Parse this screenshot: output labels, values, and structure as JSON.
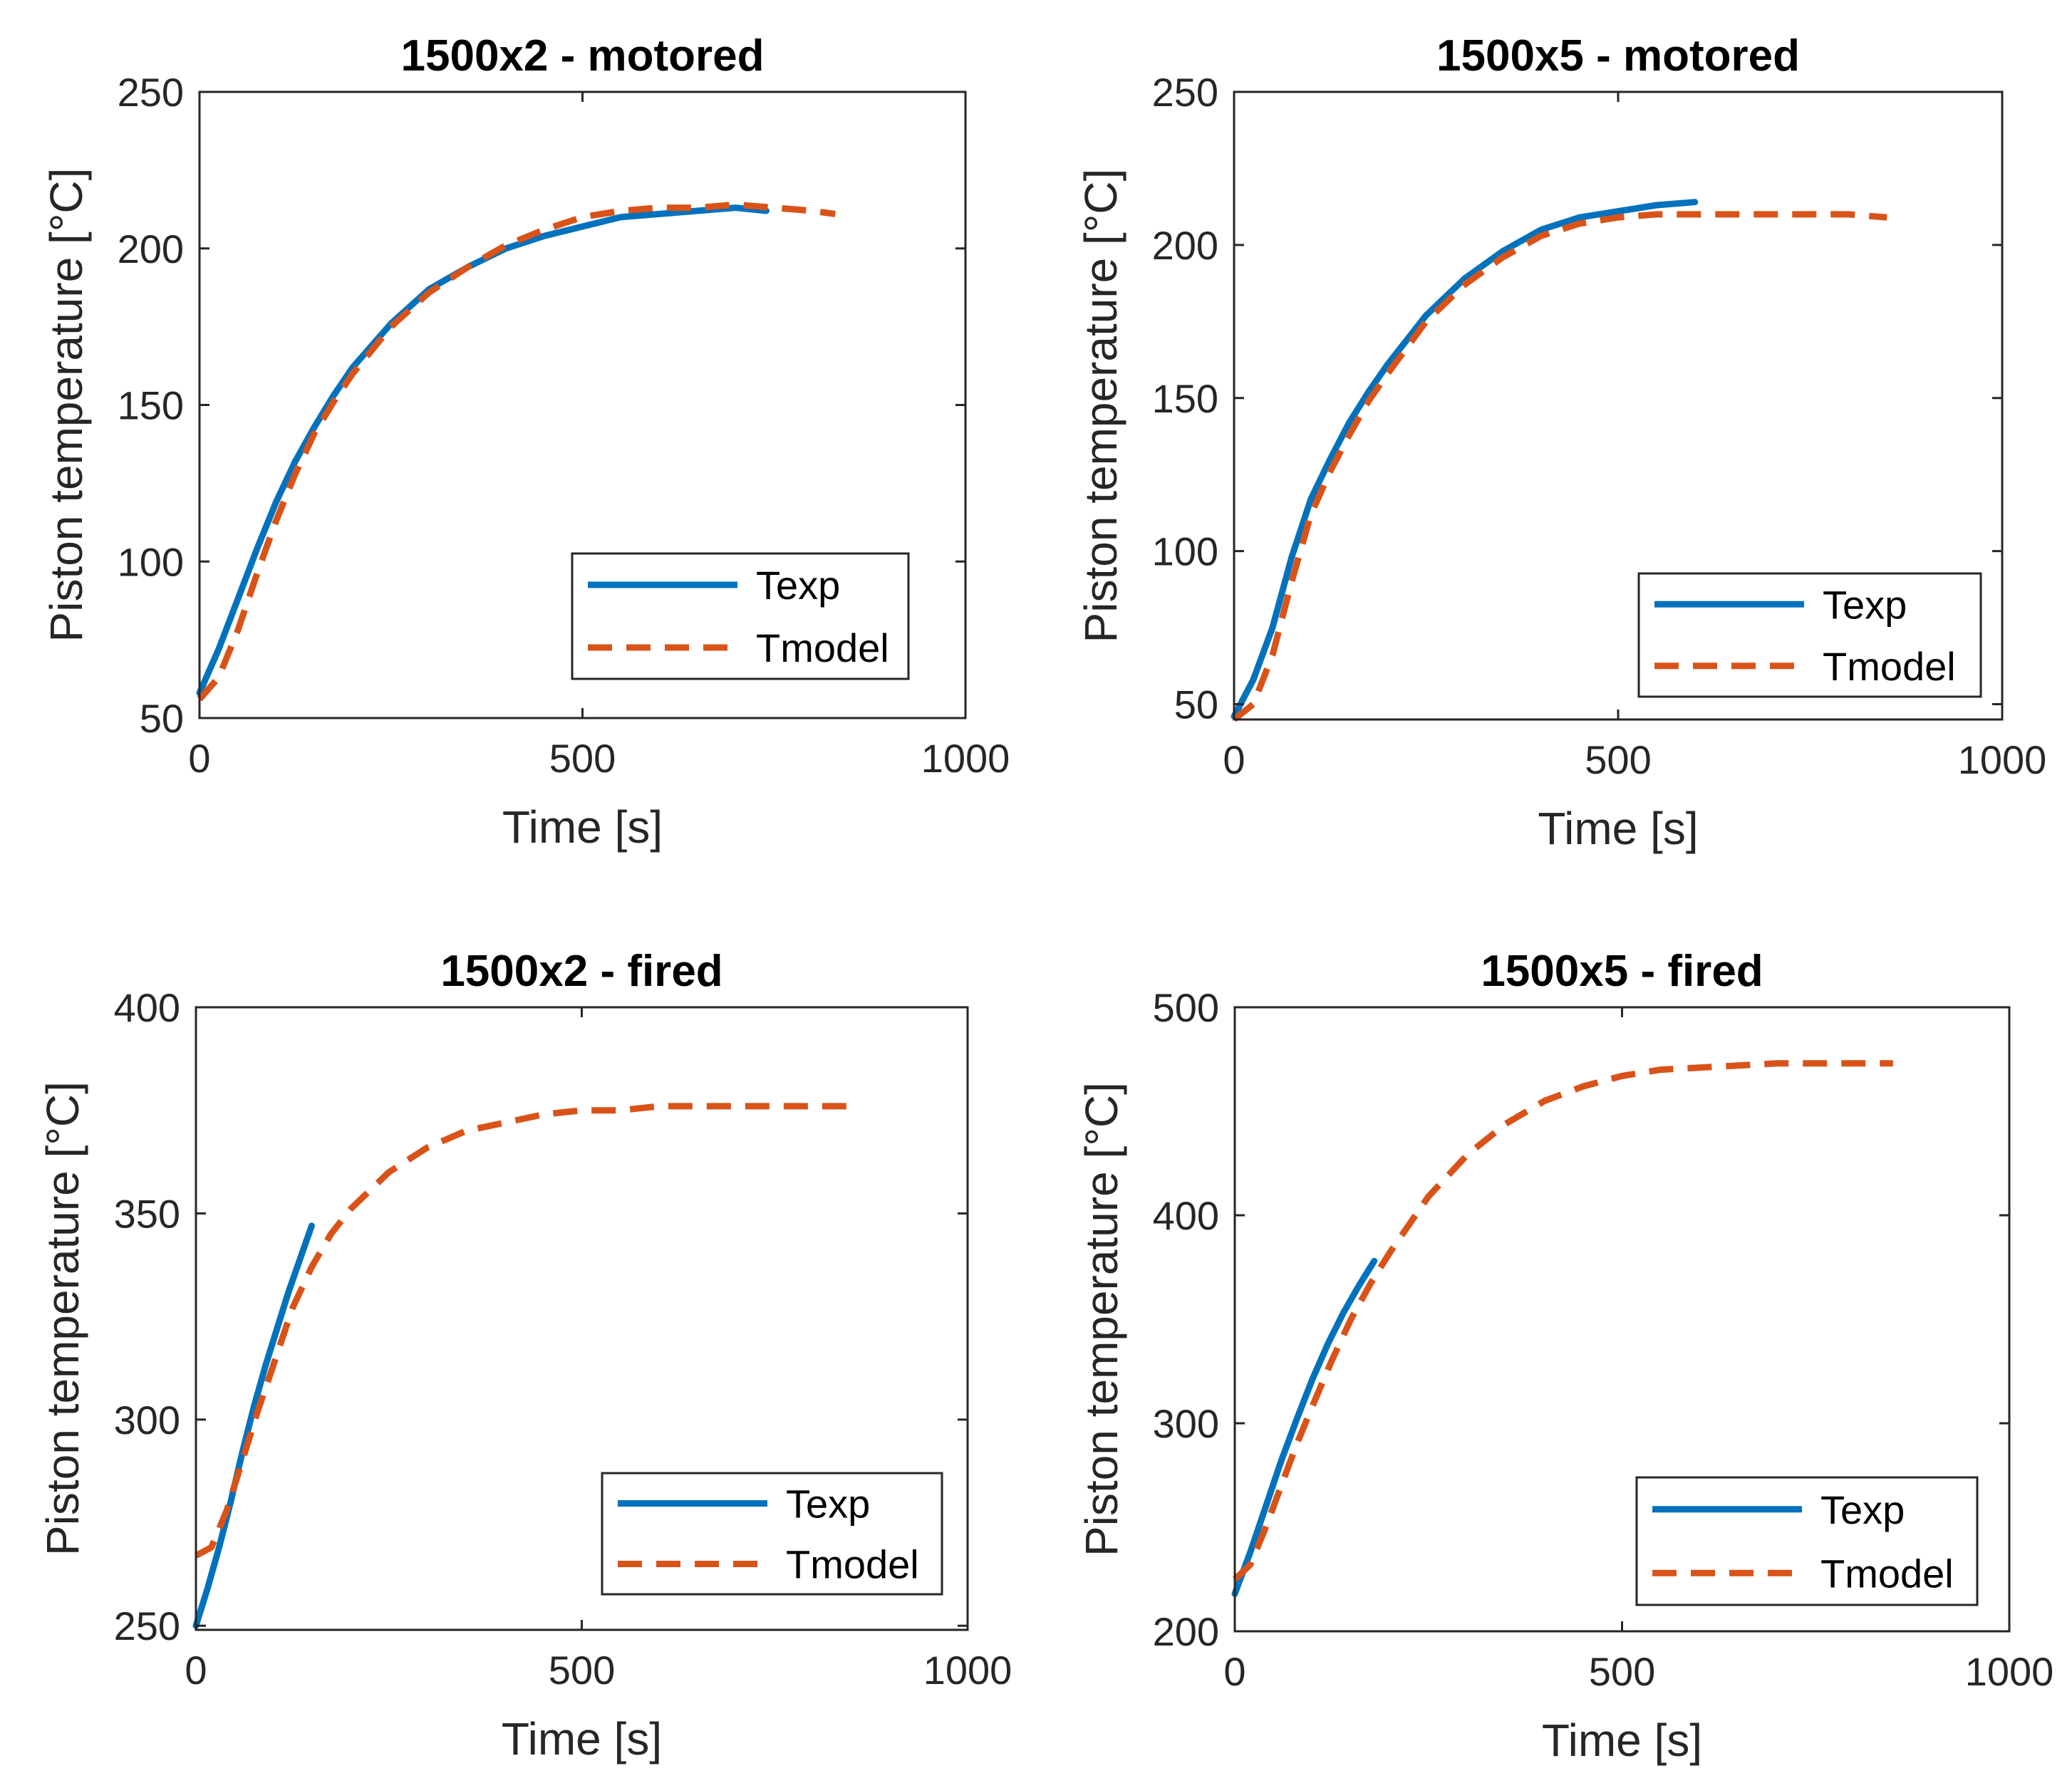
{
  "chart_data": [
    {
      "type": "line",
      "title": "1500x2 - motored",
      "xlabel": "Time [s]",
      "ylabel": "Piston temperature [°C]",
      "xlim": [
        0,
        1000
      ],
      "ylim": [
        50,
        250
      ],
      "xticks": [
        0,
        500,
        1000
      ],
      "yticks": [
        50,
        100,
        150,
        200,
        250
      ],
      "grid": false,
      "legend": "bottom-right",
      "series": [
        {
          "name": "Texp",
          "color": "#0072BD",
          "style": "solid",
          "x": [
            0,
            25,
            50,
            75,
            100,
            125,
            150,
            175,
            200,
            250,
            300,
            350,
            400,
            450,
            500,
            550,
            600,
            650,
            700,
            740
          ],
          "y": [
            58,
            72,
            88,
            104,
            119,
            132,
            143,
            153,
            162,
            176,
            187,
            194,
            200,
            204,
            207,
            210,
            211,
            212,
            213,
            212
          ]
        },
        {
          "name": "Tmodel",
          "color": "#D95319",
          "style": "dashed",
          "x": [
            0,
            25,
            50,
            75,
            100,
            125,
            150,
            175,
            200,
            250,
            300,
            350,
            400,
            450,
            500,
            550,
            600,
            650,
            700,
            750,
            800,
            830
          ],
          "y": [
            56,
            63,
            78,
            96,
            113,
            128,
            141,
            151,
            160,
            175,
            186,
            194,
            201,
            206,
            210,
            212,
            213,
            213,
            214,
            213,
            212,
            211
          ]
        }
      ]
    },
    {
      "type": "line",
      "title": "1500x5 - motored",
      "xlabel": "Time [s]",
      "ylabel": "Piston temperature [°C]",
      "xlim": [
        0,
        1000
      ],
      "ylim": [
        45,
        250
      ],
      "xticks": [
        0,
        500,
        1000
      ],
      "yticks": [
        50,
        100,
        150,
        200,
        250
      ],
      "grid": false,
      "legend": "bottom-right",
      "series": [
        {
          "name": "Texp",
          "color": "#0072BD",
          "style": "solid",
          "x": [
            0,
            25,
            50,
            75,
            100,
            125,
            150,
            175,
            200,
            250,
            300,
            350,
            400,
            450,
            500,
            550,
            600
          ],
          "y": [
            46,
            58,
            75,
            98,
            117,
            130,
            142,
            152,
            161,
            177,
            189,
            198,
            205,
            209,
            211,
            213,
            214
          ]
        },
        {
          "name": "Tmodel",
          "color": "#D95319",
          "style": "dashed",
          "x": [
            0,
            25,
            50,
            75,
            100,
            125,
            150,
            175,
            200,
            250,
            300,
            350,
            400,
            450,
            500,
            550,
            600,
            650,
            700,
            750,
            800,
            850
          ],
          "y": [
            45,
            50,
            66,
            90,
            112,
            126,
            138,
            149,
            158,
            175,
            187,
            196,
            203,
            207,
            209,
            210,
            210,
            210,
            210,
            210,
            210,
            209
          ]
        }
      ]
    },
    {
      "type": "line",
      "title": "1500x2 - fired",
      "xlabel": "Time [s]",
      "ylabel": "Piston temperature [°C]",
      "xlim": [
        0,
        1000
      ],
      "ylim": [
        249,
        400
      ],
      "xticks": [
        0,
        500,
        1000
      ],
      "yticks": [
        250,
        300,
        350,
        400
      ],
      "grid": false,
      "legend": "bottom-right",
      "series": [
        {
          "name": "Texp",
          "color": "#0072BD",
          "style": "solid",
          "x": [
            0,
            15,
            30,
            45,
            60,
            75,
            90,
            105,
            120,
            135,
            150
          ],
          "y": [
            250,
            259,
            269,
            280,
            292,
            303,
            313,
            322,
            331,
            339,
            347
          ]
        },
        {
          "name": "Tmodel",
          "color": "#D95319",
          "style": "dashed",
          "x": [
            0,
            20,
            40,
            60,
            80,
            100,
            125,
            150,
            175,
            200,
            250,
            300,
            350,
            400,
            450,
            500,
            550,
            600,
            650,
            700,
            750,
            800,
            850
          ],
          "y": [
            267,
            269,
            278,
            290,
            302,
            313,
            327,
            337,
            345,
            351,
            360,
            366,
            370,
            372,
            374,
            375,
            375,
            376,
            376,
            376,
            376,
            376,
            376
          ]
        }
      ]
    },
    {
      "type": "line",
      "title": "1500x5 - fired",
      "xlabel": "Time [s]",
      "ylabel": "Piston temperature [°C]",
      "xlim": [
        0,
        1000
      ],
      "ylim": [
        200,
        500
      ],
      "xticks": [
        0,
        500,
        1000
      ],
      "yticks": [
        200,
        300,
        400,
        500
      ],
      "grid": false,
      "legend": "bottom-right",
      "series": [
        {
          "name": "Texp",
          "color": "#0072BD",
          "style": "solid",
          "x": [
            0,
            20,
            40,
            60,
            80,
            100,
            120,
            140,
            160,
            180
          ],
          "y": [
            218,
            238,
            260,
            282,
            302,
            321,
            338,
            353,
            366,
            378
          ]
        },
        {
          "name": "Tmodel",
          "color": "#D95319",
          "style": "dashed",
          "x": [
            0,
            20,
            40,
            60,
            80,
            100,
            125,
            150,
            175,
            200,
            250,
            300,
            350,
            400,
            450,
            500,
            550,
            600,
            650,
            700,
            750,
            800,
            850
          ],
          "y": [
            225,
            232,
            250,
            270,
            290,
            308,
            330,
            350,
            367,
            382,
            409,
            429,
            444,
            455,
            462,
            467,
            470,
            471,
            472,
            473,
            473,
            473,
            473
          ]
        }
      ]
    }
  ]
}
